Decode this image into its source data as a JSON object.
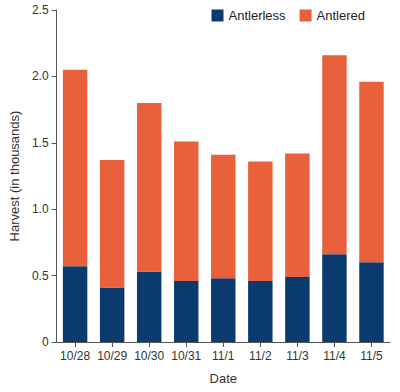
{
  "chart_data": {
    "type": "bar",
    "stacked": true,
    "legend": "upper right",
    "grid": false,
    "x_label": "Date",
    "y_label": "Harvest (in thousands)",
    "categories": [
      "10/28",
      "10/29",
      "10/30",
      "10/31",
      "11/1",
      "11/2",
      "11/3",
      "11/4",
      "11/5"
    ],
    "series": [
      {
        "name": "Antlerless",
        "color": "#0b3a6e",
        "values": [
          0.57,
          0.41,
          0.53,
          0.46,
          0.48,
          0.46,
          0.49,
          0.66,
          0.6
        ]
      },
      {
        "name": "Antlered",
        "color": "#e8603c",
        "values": [
          1.48,
          0.96,
          1.27,
          1.05,
          0.93,
          0.9,
          0.93,
          1.5,
          1.36
        ]
      }
    ],
    "ylim": [
      0,
      2.5
    ],
    "yticks": [
      0,
      0.5,
      {
        "value": 1,
        "label": "1.0"
      },
      1.5,
      {
        "value": 2,
        "label": "2.0"
      },
      2.5
    ]
  }
}
